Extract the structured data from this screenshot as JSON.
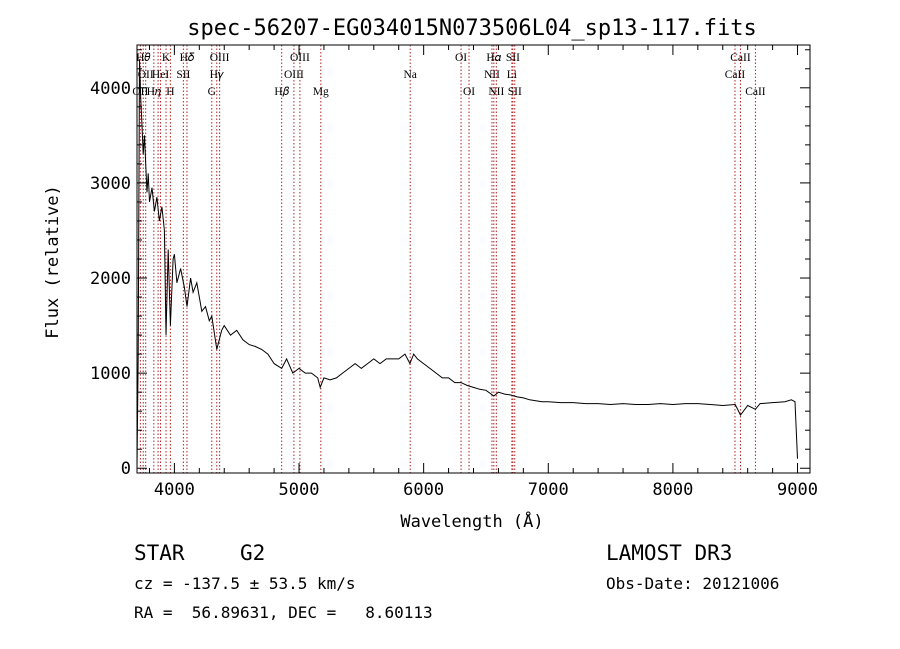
{
  "chart_data": {
    "type": "line",
    "title": "spec-56207-EG034015N073506L04_sp13-117.fits",
    "xlabel": "Wavelength (Å)",
    "ylabel": "Flux (relative)",
    "xlim": [
      3700,
      9100
    ],
    "ylim": [
      -50,
      4450
    ],
    "x_ticks": [
      4000,
      5000,
      6000,
      7000,
      8000,
      9000
    ],
    "y_ticks": [
      0,
      1000,
      2000,
      3000,
      4000
    ],
    "grid": false,
    "series": [
      {
        "x": [
          3700,
          3710,
          3720,
          3730,
          3740,
          3750,
          3760,
          3770,
          3780,
          3790,
          3800,
          3820,
          3840,
          3860,
          3880,
          3900,
          3920,
          3933,
          3950,
          3968,
          3990,
          4000,
          4020,
          4050,
          4080,
          4101,
          4130,
          4150,
          4180,
          4200,
          4220,
          4250,
          4280,
          4300,
          4340,
          4380,
          4400,
          4450,
          4500,
          4550,
          4600,
          4650,
          4700,
          4750,
          4800,
          4861,
          4900,
          4950,
          5000,
          5050,
          5100,
          5150,
          5170,
          5200,
          5250,
          5300,
          5350,
          5400,
          5450,
          5500,
          5550,
          5600,
          5650,
          5700,
          5750,
          5800,
          5850,
          5890,
          5920,
          5950,
          6000,
          6050,
          6100,
          6150,
          6200,
          6250,
          6300,
          6350,
          6400,
          6450,
          6500,
          6563,
          6600,
          6650,
          6700,
          6750,
          6800,
          6850,
          6900,
          6950,
          7000,
          7100,
          7200,
          7300,
          7400,
          7500,
          7600,
          7700,
          7800,
          7900,
          8000,
          8100,
          8200,
          8300,
          8400,
          8500,
          8542,
          8600,
          8662,
          8700,
          8800,
          8900,
          8950,
          8980,
          9000
        ],
        "y": [
          0,
          1200,
          4300,
          3900,
          3600,
          3300,
          3500,
          3200,
          2900,
          3100,
          2800,
          2950,
          2700,
          2850,
          2600,
          2750,
          2500,
          1400,
          2300,
          1500,
          2200,
          2250,
          1950,
          2100,
          1900,
          1700,
          2000,
          1850,
          1950,
          1800,
          1650,
          1700,
          1550,
          1600,
          1250,
          1450,
          1500,
          1400,
          1450,
          1350,
          1300,
          1280,
          1250,
          1200,
          1100,
          1050,
          1150,
          1000,
          1050,
          1000,
          1000,
          950,
          850,
          950,
          930,
          950,
          1000,
          1050,
          1100,
          1050,
          1100,
          1150,
          1100,
          1150,
          1150,
          1150,
          1200,
          1100,
          1200,
          1150,
          1100,
          1050,
          1000,
          950,
          950,
          900,
          900,
          870,
          850,
          830,
          820,
          760,
          800,
          780,
          770,
          750,
          740,
          720,
          710,
          700,
          700,
          690,
          690,
          680,
          680,
          670,
          680,
          670,
          670,
          680,
          670,
          680,
          680,
          670,
          660,
          670,
          560,
          660,
          620,
          680,
          690,
          700,
          720,
          700,
          100
        ]
      }
    ],
    "annotations": {
      "lines": [
        {
          "x": 3727,
          "label": "OII",
          "row": 3
        },
        {
          "x": 3750,
          "label": "H𝜃",
          "row": 1
        },
        {
          "x": 3770,
          "label": "OII",
          "row": 2
        },
        {
          "x": 3835,
          "label": "H𝜂",
          "row": 3
        },
        {
          "x": 3869,
          "label": "",
          "row": 0
        },
        {
          "x": 3889,
          "label": "HeI",
          "row": 2
        },
        {
          "x": 3933,
          "label": "K",
          "row": 1
        },
        {
          "x": 3968,
          "label": "H",
          "row": 3
        },
        {
          "x": 4072,
          "label": "SII",
          "row": 2
        },
        {
          "x": 4101,
          "label": "H𝛿",
          "row": 1
        },
        {
          "x": 4300,
          "label": "G",
          "row": 3
        },
        {
          "x": 4340,
          "label": "H𝛾",
          "row": 2
        },
        {
          "x": 4363,
          "label": "OIII",
          "row": 1
        },
        {
          "x": 4861,
          "label": "H𝛽",
          "row": 3
        },
        {
          "x": 4959,
          "label": "OIII",
          "row": 2
        },
        {
          "x": 5007,
          "label": "OIII",
          "row": 1
        },
        {
          "x": 5175,
          "label": "Mg",
          "row": 3
        },
        {
          "x": 5892,
          "label": "Na",
          "row": 2
        },
        {
          "x": 6300,
          "label": "OI",
          "row": 1
        },
        {
          "x": 6364,
          "label": "OI",
          "row": 3
        },
        {
          "x": 6548,
          "label": "NII",
          "row": 2
        },
        {
          "x": 6563,
          "label": "H𝛼",
          "row": 1
        },
        {
          "x": 6583,
          "label": "NII",
          "row": 3
        },
        {
          "x": 6708,
          "label": "Li",
          "row": 2
        },
        {
          "x": 6716,
          "label": "SII",
          "row": 1
        },
        {
          "x": 6731,
          "label": "SII",
          "row": 3
        },
        {
          "x": 8498,
          "label": "CaII",
          "row": 2
        },
        {
          "x": 8542,
          "label": "CaII",
          "row": 1
        },
        {
          "x": 8662,
          "label": "CaII",
          "row": 3
        }
      ]
    }
  },
  "footer": {
    "object_class": "STAR",
    "subclass": "G2",
    "survey": "LAMOST DR3",
    "cz": "cz = -137.5 ± 53.5 km/s",
    "obs_date": "Obs-Date: 20121006",
    "coords": "RA =  56.89631, DEC =   8.60113"
  },
  "colors": {
    "line_marker": "#b22222",
    "spectrum": "#000000"
  }
}
